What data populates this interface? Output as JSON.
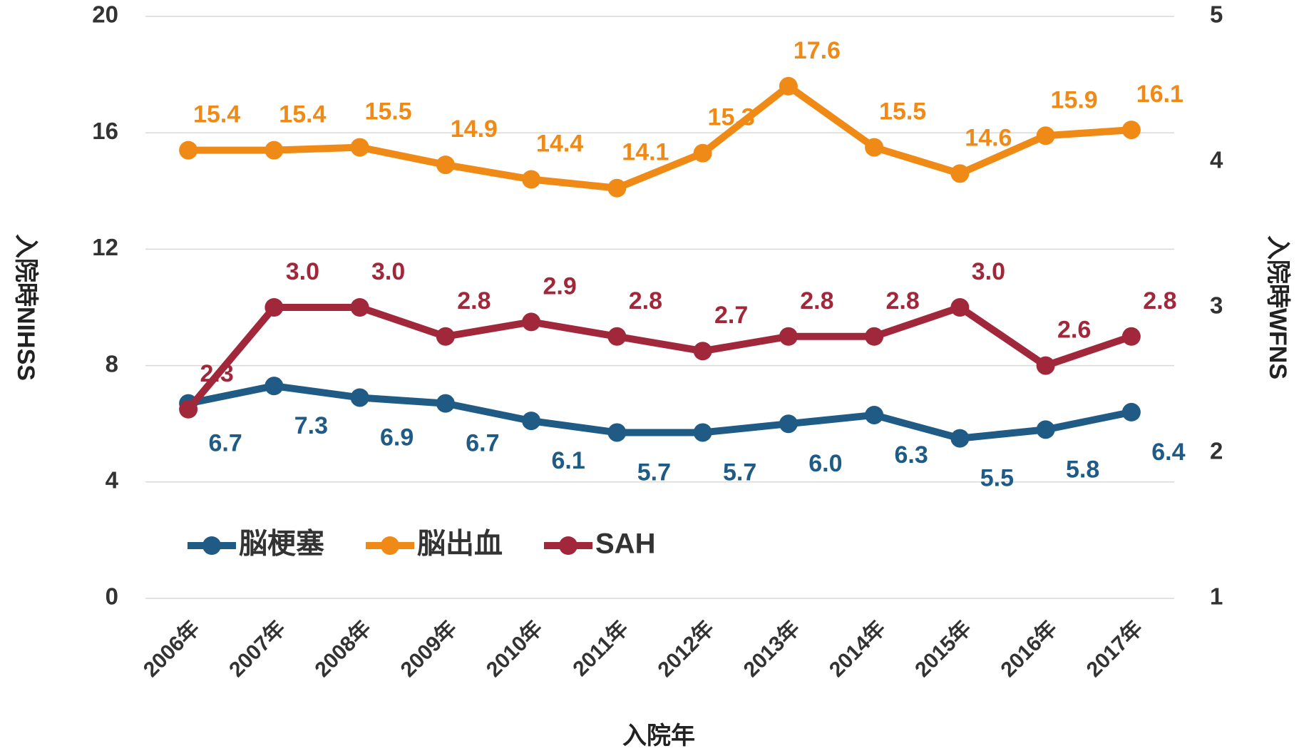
{
  "chart_data": {
    "type": "line",
    "categories": [
      "2006年",
      "2007年",
      "2008年",
      "2009年",
      "2010年",
      "2011年",
      "2012年",
      "2013年",
      "2014年",
      "2015年",
      "2016年",
      "2017年"
    ],
    "series": [
      {
        "name": "脳梗塞",
        "color": "#1f5b85",
        "values": [
          6.7,
          7.3,
          6.9,
          6.7,
          6.1,
          5.7,
          5.7,
          6.0,
          6.3,
          5.5,
          5.8,
          6.4
        ],
        "value_labels": [
          "6.7",
          "7.3",
          "6.9",
          "6.7",
          "6.1",
          "5.7",
          "5.7",
          "6.0",
          "6.3",
          "5.5",
          "5.8",
          "6.4"
        ]
      },
      {
        "name": "脳出血",
        "color": "#f08a16",
        "values": [
          15.4,
          15.4,
          15.5,
          14.9,
          14.4,
          14.1,
          15.3,
          17.6,
          15.5,
          14.6,
          15.9,
          16.1
        ],
        "value_labels": [
          "15.4",
          "15.4",
          "15.5",
          "14.9",
          "14.4",
          "14.1",
          "15.3",
          "17.6",
          "15.5",
          "14.6",
          "15.9",
          "16.1"
        ]
      },
      {
        "name": "SAH",
        "color": "#a1283a",
        "axis": "y2",
        "values": [
          2.3,
          3.0,
          3.0,
          2.8,
          2.9,
          2.8,
          2.7,
          2.8,
          2.8,
          3.0,
          2.6,
          2.8
        ],
        "value_labels": [
          "2.3",
          "3.0",
          "3.0",
          "2.8",
          "2.9",
          "2.8",
          "2.7",
          "2.8",
          "2.8",
          "3.0",
          "2.6",
          "2.8"
        ]
      }
    ],
    "ylim": [
      0,
      20
    ],
    "yticks": [
      0,
      4,
      8,
      12,
      16,
      20
    ],
    "y2lim": [
      1,
      5
    ],
    "y2ticks": [
      1,
      2,
      3,
      4,
      5
    ],
    "ylabel": "入院時NIHSS",
    "y2label": "入院時WFNS",
    "xlabel": "入院年",
    "grid": true,
    "legend": "lower left"
  }
}
